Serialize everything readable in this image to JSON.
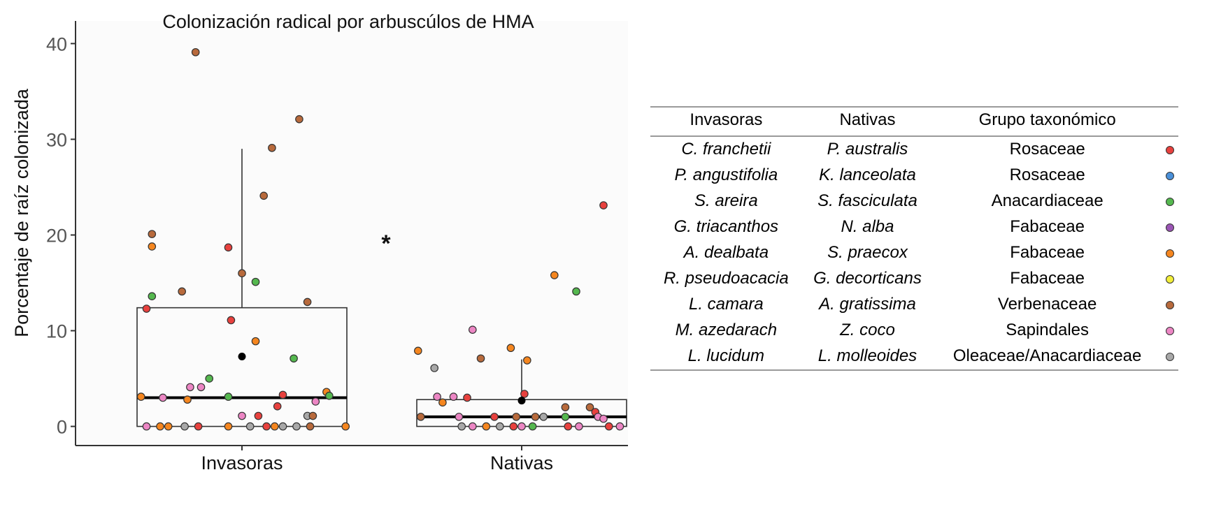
{
  "chart_data": {
    "type": "box",
    "title": "Colonización radical por arbuscúlos de HMA",
    "ylabel": "Porcentaje de raíz colonizada",
    "xlabel": "",
    "categories": [
      "Invasoras",
      "Nativas"
    ],
    "ylim": [
      -2,
      42
    ],
    "yticks": [
      0,
      10,
      20,
      30,
      40
    ],
    "significance": "*",
    "boxes": [
      {
        "group": "Invasoras",
        "q1": 0,
        "median": 3,
        "q3": 12.4,
        "whisker_low": 0,
        "whisker_high": 29,
        "mean": 7.3
      },
      {
        "group": "Nativas",
        "q1": 0,
        "median": 1,
        "q3": 2.8,
        "whisker_low": 0,
        "whisker_high": 7,
        "mean": 2.7
      }
    ],
    "points": [
      {
        "group": "Invasoras",
        "family": "Verbenaceae",
        "x_offset": -0.17,
        "y": 39.1
      },
      {
        "group": "Invasoras",
        "family": "Verbenaceae",
        "x_offset": 0.21,
        "y": 32.1
      },
      {
        "group": "Invasoras",
        "family": "Verbenaceae",
        "x_offset": 0.11,
        "y": 29.1
      },
      {
        "group": "Invasoras",
        "family": "Verbenaceae",
        "x_offset": 0.08,
        "y": 24.1
      },
      {
        "group": "Invasoras",
        "family": "Verbenaceae",
        "x_offset": -0.33,
        "y": 20.1
      },
      {
        "group": "Invasoras",
        "family": "Fabaceae",
        "x_offset": -0.33,
        "y": 18.8
      },
      {
        "group": "Invasoras",
        "family": "Rosaceae",
        "x_offset": -0.05,
        "y": 18.7
      },
      {
        "group": "Invasoras",
        "family": "Verbenaceae",
        "x_offset": 0.0,
        "y": 16.0
      },
      {
        "group": "Invasoras",
        "family": "Anacardiaceae",
        "x_offset": 0.05,
        "y": 15.1
      },
      {
        "group": "Invasoras",
        "family": "Verbenaceae",
        "x_offset": -0.22,
        "y": 14.1
      },
      {
        "group": "Invasoras",
        "family": "Anacardiaceae",
        "x_offset": -0.33,
        "y": 13.6
      },
      {
        "group": "Invasoras",
        "family": "Verbenaceae",
        "x_offset": 0.24,
        "y": 13.0
      },
      {
        "group": "Invasoras",
        "family": "Rosaceae",
        "x_offset": -0.35,
        "y": 12.3
      },
      {
        "group": "Invasoras",
        "family": "Rosaceae",
        "x_offset": -0.04,
        "y": 11.1
      },
      {
        "group": "Invasoras",
        "family": "Fabaceae",
        "x_offset": 0.05,
        "y": 8.9
      },
      {
        "group": "Invasoras",
        "family": "Anacardiaceae",
        "x_offset": 0.19,
        "y": 7.1
      },
      {
        "group": "Invasoras",
        "family": "Anacardiaceae",
        "x_offset": -0.12,
        "y": 5.0
      },
      {
        "group": "Invasoras",
        "family": "Sapindales",
        "x_offset": -0.19,
        "y": 4.1
      },
      {
        "group": "Invasoras",
        "family": "Sapindales",
        "x_offset": -0.15,
        "y": 4.1
      },
      {
        "group": "Invasoras",
        "family": "Fabaceae",
        "x_offset": 0.31,
        "y": 3.6
      },
      {
        "group": "Invasoras",
        "family": "Rosaceae",
        "x_offset": 0.15,
        "y": 3.3
      },
      {
        "group": "Invasoras",
        "family": "Anacardiaceae",
        "x_offset": 0.32,
        "y": 3.2
      },
      {
        "group": "Invasoras",
        "family": "Fabaceae",
        "x_offset": -0.37,
        "y": 3.1
      },
      {
        "group": "Invasoras",
        "family": "Sapindales",
        "x_offset": -0.29,
        "y": 3.0
      },
      {
        "group": "Invasoras",
        "family": "Fabaceae",
        "x_offset": -0.2,
        "y": 2.8
      },
      {
        "group": "Invasoras",
        "family": "Anacardiaceae",
        "x_offset": -0.05,
        "y": 3.1
      },
      {
        "group": "Invasoras",
        "family": "Sapindales",
        "x_offset": 0.27,
        "y": 2.6
      },
      {
        "group": "Invasoras",
        "family": "Rosaceae",
        "x_offset": 0.13,
        "y": 2.1
      },
      {
        "group": "Invasoras",
        "family": "Sapindales",
        "x_offset": 0.0,
        "y": 1.1
      },
      {
        "group": "Invasoras",
        "family": "Rosaceae",
        "x_offset": 0.06,
        "y": 1.1
      },
      {
        "group": "Invasoras",
        "family": "Oleaceae/Anacardiaceae",
        "x_offset": 0.24,
        "y": 1.1
      },
      {
        "group": "Invasoras",
        "family": "Verbenaceae",
        "x_offset": 0.26,
        "y": 1.1
      },
      {
        "group": "Invasoras",
        "family": "Sapindales",
        "x_offset": -0.35,
        "y": 0.0
      },
      {
        "group": "Invasoras",
        "family": "Fabaceae",
        "x_offset": -0.3,
        "y": 0.0
      },
      {
        "group": "Invasoras",
        "family": "Fabaceae",
        "x_offset": -0.27,
        "y": 0.0
      },
      {
        "group": "Invasoras",
        "family": "Oleaceae/Anacardiaceae",
        "x_offset": -0.21,
        "y": 0.0
      },
      {
        "group": "Invasoras",
        "family": "Rosaceae",
        "x_offset": -0.16,
        "y": 0.0
      },
      {
        "group": "Invasoras",
        "family": "Fabaceae",
        "x_offset": -0.05,
        "y": 0.0
      },
      {
        "group": "Invasoras",
        "family": "Oleaceae/Anacardiaceae",
        "x_offset": 0.03,
        "y": 0.0
      },
      {
        "group": "Invasoras",
        "family": "Rosaceae",
        "x_offset": 0.09,
        "y": 0.0
      },
      {
        "group": "Invasoras",
        "family": "Oleaceae/Anacardiaceae",
        "x_offset": 0.15,
        "y": 0.0
      },
      {
        "group": "Invasoras",
        "family": "Fabaceae",
        "x_offset": 0.12,
        "y": 0.0
      },
      {
        "group": "Invasoras",
        "family": "Oleaceae/Anacardiaceae",
        "x_offset": 0.2,
        "y": 0.0
      },
      {
        "group": "Invasoras",
        "family": "Verbenaceae",
        "x_offset": 0.25,
        "y": 0.0
      },
      {
        "group": "Invasoras",
        "family": "Fabaceae",
        "x_offset": 0.38,
        "y": 0.0
      },
      {
        "group": "Nativas",
        "family": "Rosaceae",
        "x_offset": 0.3,
        "y": 23.1
      },
      {
        "group": "Nativas",
        "family": "Fabaceae",
        "x_offset": 0.12,
        "y": 15.8
      },
      {
        "group": "Nativas",
        "family": "Anacardiaceae",
        "x_offset": 0.2,
        "y": 14.1
      },
      {
        "group": "Nativas",
        "family": "Sapindales",
        "x_offset": -0.18,
        "y": 10.1
      },
      {
        "group": "Nativas",
        "family": "Fabaceae",
        "x_offset": -0.04,
        "y": 8.2
      },
      {
        "group": "Nativas",
        "family": "Fabaceae",
        "x_offset": -0.38,
        "y": 7.9
      },
      {
        "group": "Nativas",
        "family": "Verbenaceae",
        "x_offset": -0.15,
        "y": 7.1
      },
      {
        "group": "Nativas",
        "family": "Fabaceae",
        "x_offset": 0.02,
        "y": 6.9
      },
      {
        "group": "Nativas",
        "family": "Oleaceae/Anacardiaceae",
        "x_offset": -0.32,
        "y": 6.1
      },
      {
        "group": "Nativas",
        "family": "Rosaceae",
        "x_offset": 0.01,
        "y": 3.4
      },
      {
        "group": "Nativas",
        "family": "Sapindales",
        "x_offset": -0.31,
        "y": 3.1
      },
      {
        "group": "Nativas",
        "family": "Sapindales",
        "x_offset": -0.25,
        "y": 3.1
      },
      {
        "group": "Nativas",
        "family": "Rosaceae",
        "x_offset": -0.2,
        "y": 3.0
      },
      {
        "group": "Nativas",
        "family": "Fabaceae",
        "x_offset": -0.29,
        "y": 2.5
      },
      {
        "group": "Nativas",
        "family": "Verbenaceae",
        "x_offset": 0.16,
        "y": 2.0
      },
      {
        "group": "Nativas",
        "family": "Verbenaceae",
        "x_offset": 0.25,
        "y": 2.0
      },
      {
        "group": "Nativas",
        "family": "Rosaceae",
        "x_offset": 0.27,
        "y": 1.5
      },
      {
        "group": "Nativas",
        "family": "Sapindales",
        "x_offset": 0.28,
        "y": 1.0
      },
      {
        "group": "Nativas",
        "family": "Verbenaceae",
        "x_offset": -0.37,
        "y": 1.0
      },
      {
        "group": "Nativas",
        "family": "Sapindales",
        "x_offset": -0.23,
        "y": 1.0
      },
      {
        "group": "Nativas",
        "family": "Rosaceae",
        "x_offset": -0.1,
        "y": 1.0
      },
      {
        "group": "Nativas",
        "family": "Verbenaceae",
        "x_offset": -0.02,
        "y": 1.0
      },
      {
        "group": "Nativas",
        "family": "Verbenaceae",
        "x_offset": 0.05,
        "y": 1.0
      },
      {
        "group": "Nativas",
        "family": "Oleaceae/Anacardiaceae",
        "x_offset": 0.08,
        "y": 1.0
      },
      {
        "group": "Nativas",
        "family": "Anacardiaceae",
        "x_offset": 0.16,
        "y": 1.0
      },
      {
        "group": "Nativas",
        "family": "Sapindales",
        "x_offset": 0.3,
        "y": 0.8
      },
      {
        "group": "Nativas",
        "family": "Oleaceae/Anacardiaceae",
        "x_offset": -0.22,
        "y": 0.0
      },
      {
        "group": "Nativas",
        "family": "Sapindales",
        "x_offset": -0.18,
        "y": 0.0
      },
      {
        "group": "Nativas",
        "family": "Fabaceae",
        "x_offset": -0.13,
        "y": 0.0
      },
      {
        "group": "Nativas",
        "family": "Oleaceae/Anacardiaceae",
        "x_offset": -0.08,
        "y": 0.0
      },
      {
        "group": "Nativas",
        "family": "Rosaceae",
        "x_offset": -0.03,
        "y": 0.0
      },
      {
        "group": "Nativas",
        "family": "Sapindales",
        "x_offset": 0.0,
        "y": 0.0
      },
      {
        "group": "Nativas",
        "family": "Anacardiaceae",
        "x_offset": 0.04,
        "y": 0.0
      },
      {
        "group": "Nativas",
        "family": "Rosaceae",
        "x_offset": 0.17,
        "y": 0.0
      },
      {
        "group": "Nativas",
        "family": "Sapindales",
        "x_offset": 0.21,
        "y": 0.0
      },
      {
        "group": "Nativas",
        "family": "Rosaceae",
        "x_offset": 0.32,
        "y": 0.0
      },
      {
        "group": "Nativas",
        "family": "Sapindales",
        "x_offset": 0.36,
        "y": 0.0
      }
    ]
  },
  "legend": {
    "headers": [
      "Invasoras",
      "Nativas",
      "Grupo taxonómico"
    ],
    "rows": [
      {
        "invasora": "C. franchetii",
        "nativa": "P. australis",
        "grupo": "Rosaceae",
        "color": "#e8413e"
      },
      {
        "invasora": "P. angustifolia",
        "nativa": "K. lanceolata",
        "grupo": "Rosaceae",
        "color": "#4a90d9"
      },
      {
        "invasora": "S. areira",
        "nativa": "S. fasciculata",
        "grupo": "Anacardiaceae",
        "color": "#55b84f"
      },
      {
        "invasora": "G. triacanthos",
        "nativa": "N. alba",
        "grupo": "Fabaceae",
        "color": "#9b55b5"
      },
      {
        "invasora": "A. dealbata",
        "nativa": "S. praecox",
        "grupo": "Fabaceae",
        "color": "#f5861f"
      },
      {
        "invasora": "R. pseudoacacia",
        "nativa": "G. decorticans",
        "grupo": "Fabaceae",
        "color": "#f2ee3a"
      },
      {
        "invasora": "L. camara",
        "nativa": "A. gratissima",
        "grupo": "Verbenaceae",
        "color": "#b86a3c"
      },
      {
        "invasora": "M. azedarach",
        "nativa": "Z. coco",
        "grupo": "Sapindales",
        "color": "#ec86c4"
      },
      {
        "invasora": "L. lucidum",
        "nativa": "L. molleoides",
        "grupo": "Oleaceae/Anacardiaceae",
        "color": "#a8a8a8"
      }
    ]
  },
  "colors": {
    "Rosaceae": "#e8413e",
    "Anacardiaceae": "#55b84f",
    "Fabaceae": "#f5861f",
    "Verbenaceae": "#b86a3c",
    "Sapindales": "#ec86c4",
    "Oleaceae/Anacardiaceae": "#a8a8a8",
    "panel_bg": "#fbfbfb",
    "axis": "#333333"
  }
}
